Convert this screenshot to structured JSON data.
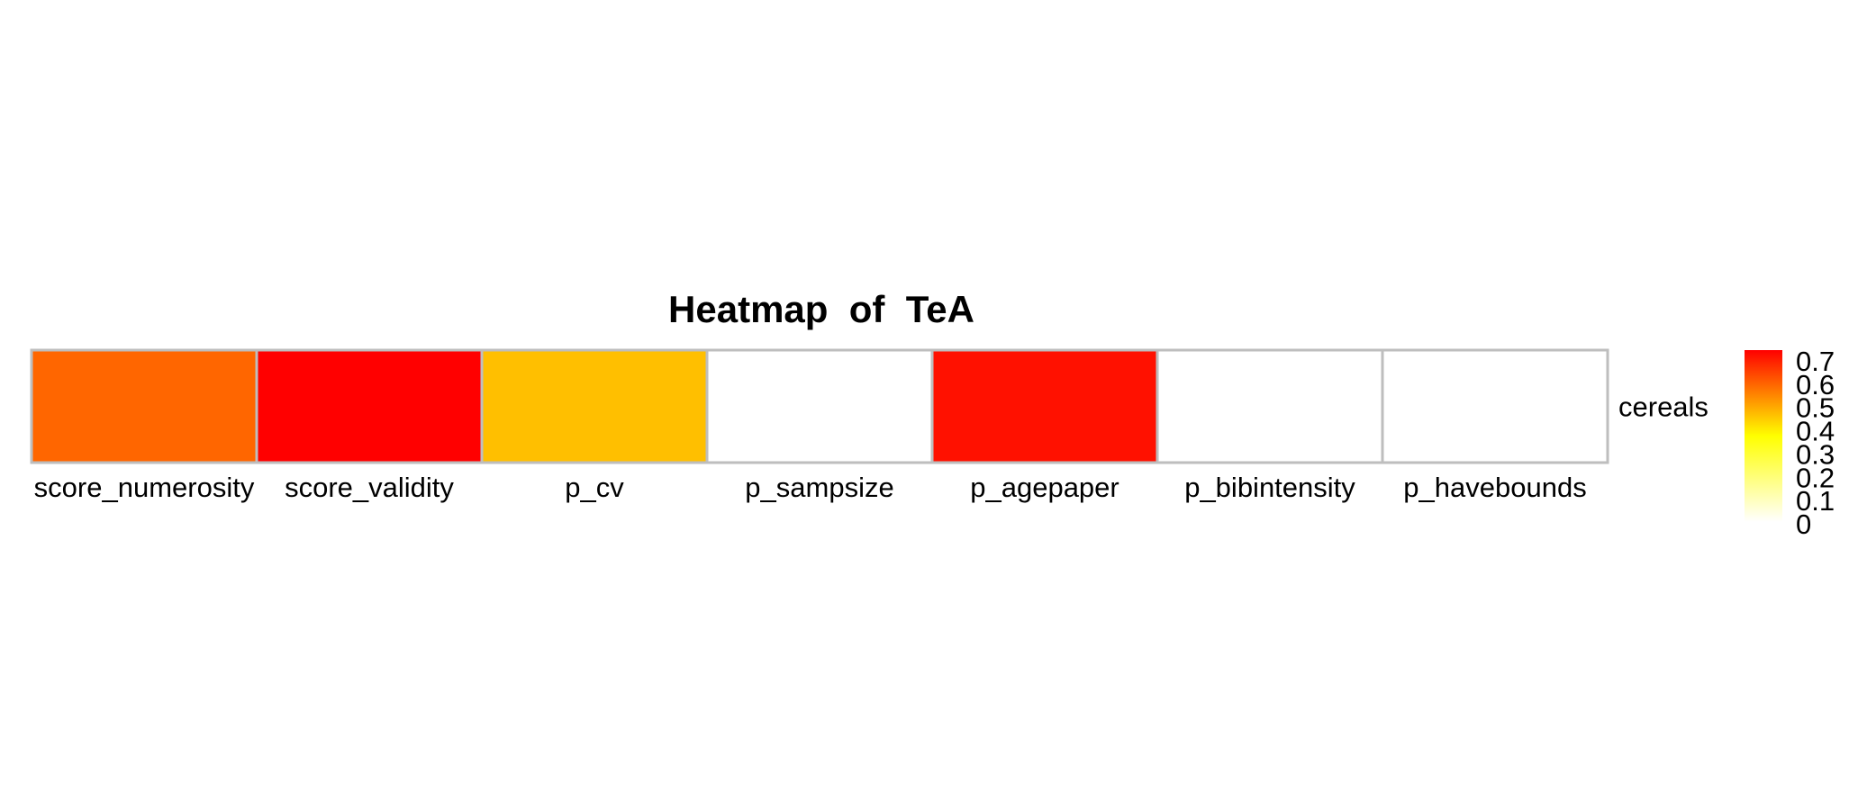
{
  "chart_data": {
    "type": "heatmap",
    "title": "Heatmap  of  TeA",
    "rows": [
      "cereals"
    ],
    "columns": [
      "score_numerosity",
      "score_validity",
      "p_cv",
      "p_sampsize",
      "p_agepaper",
      "p_bibintensity",
      "p_havebounds"
    ],
    "values": [
      [
        0.62,
        0.74,
        0.47,
        0.0,
        0.72,
        0.0,
        0.0
      ]
    ],
    "colors": [
      "#FF6600",
      "#FF0000",
      "#FFBF00",
      "#FFFFFF",
      "#FF1100",
      "#FFFFFF",
      "#FFFFFF"
    ],
    "legend": {
      "ticks": [
        "0.7",
        "0.6",
        "0.5",
        "0.4",
        "0.3",
        "0.2",
        "0.1",
        "0"
      ],
      "tick_values": [
        0.7,
        0.6,
        0.5,
        0.4,
        0.3,
        0.2,
        0.1,
        0
      ],
      "range": [
        0,
        0.75
      ],
      "colors": [
        "#FFFFFF",
        "#FFFF00",
        "#FF0000"
      ],
      "placement": "right"
    },
    "border_color": "#BEBEBE"
  }
}
